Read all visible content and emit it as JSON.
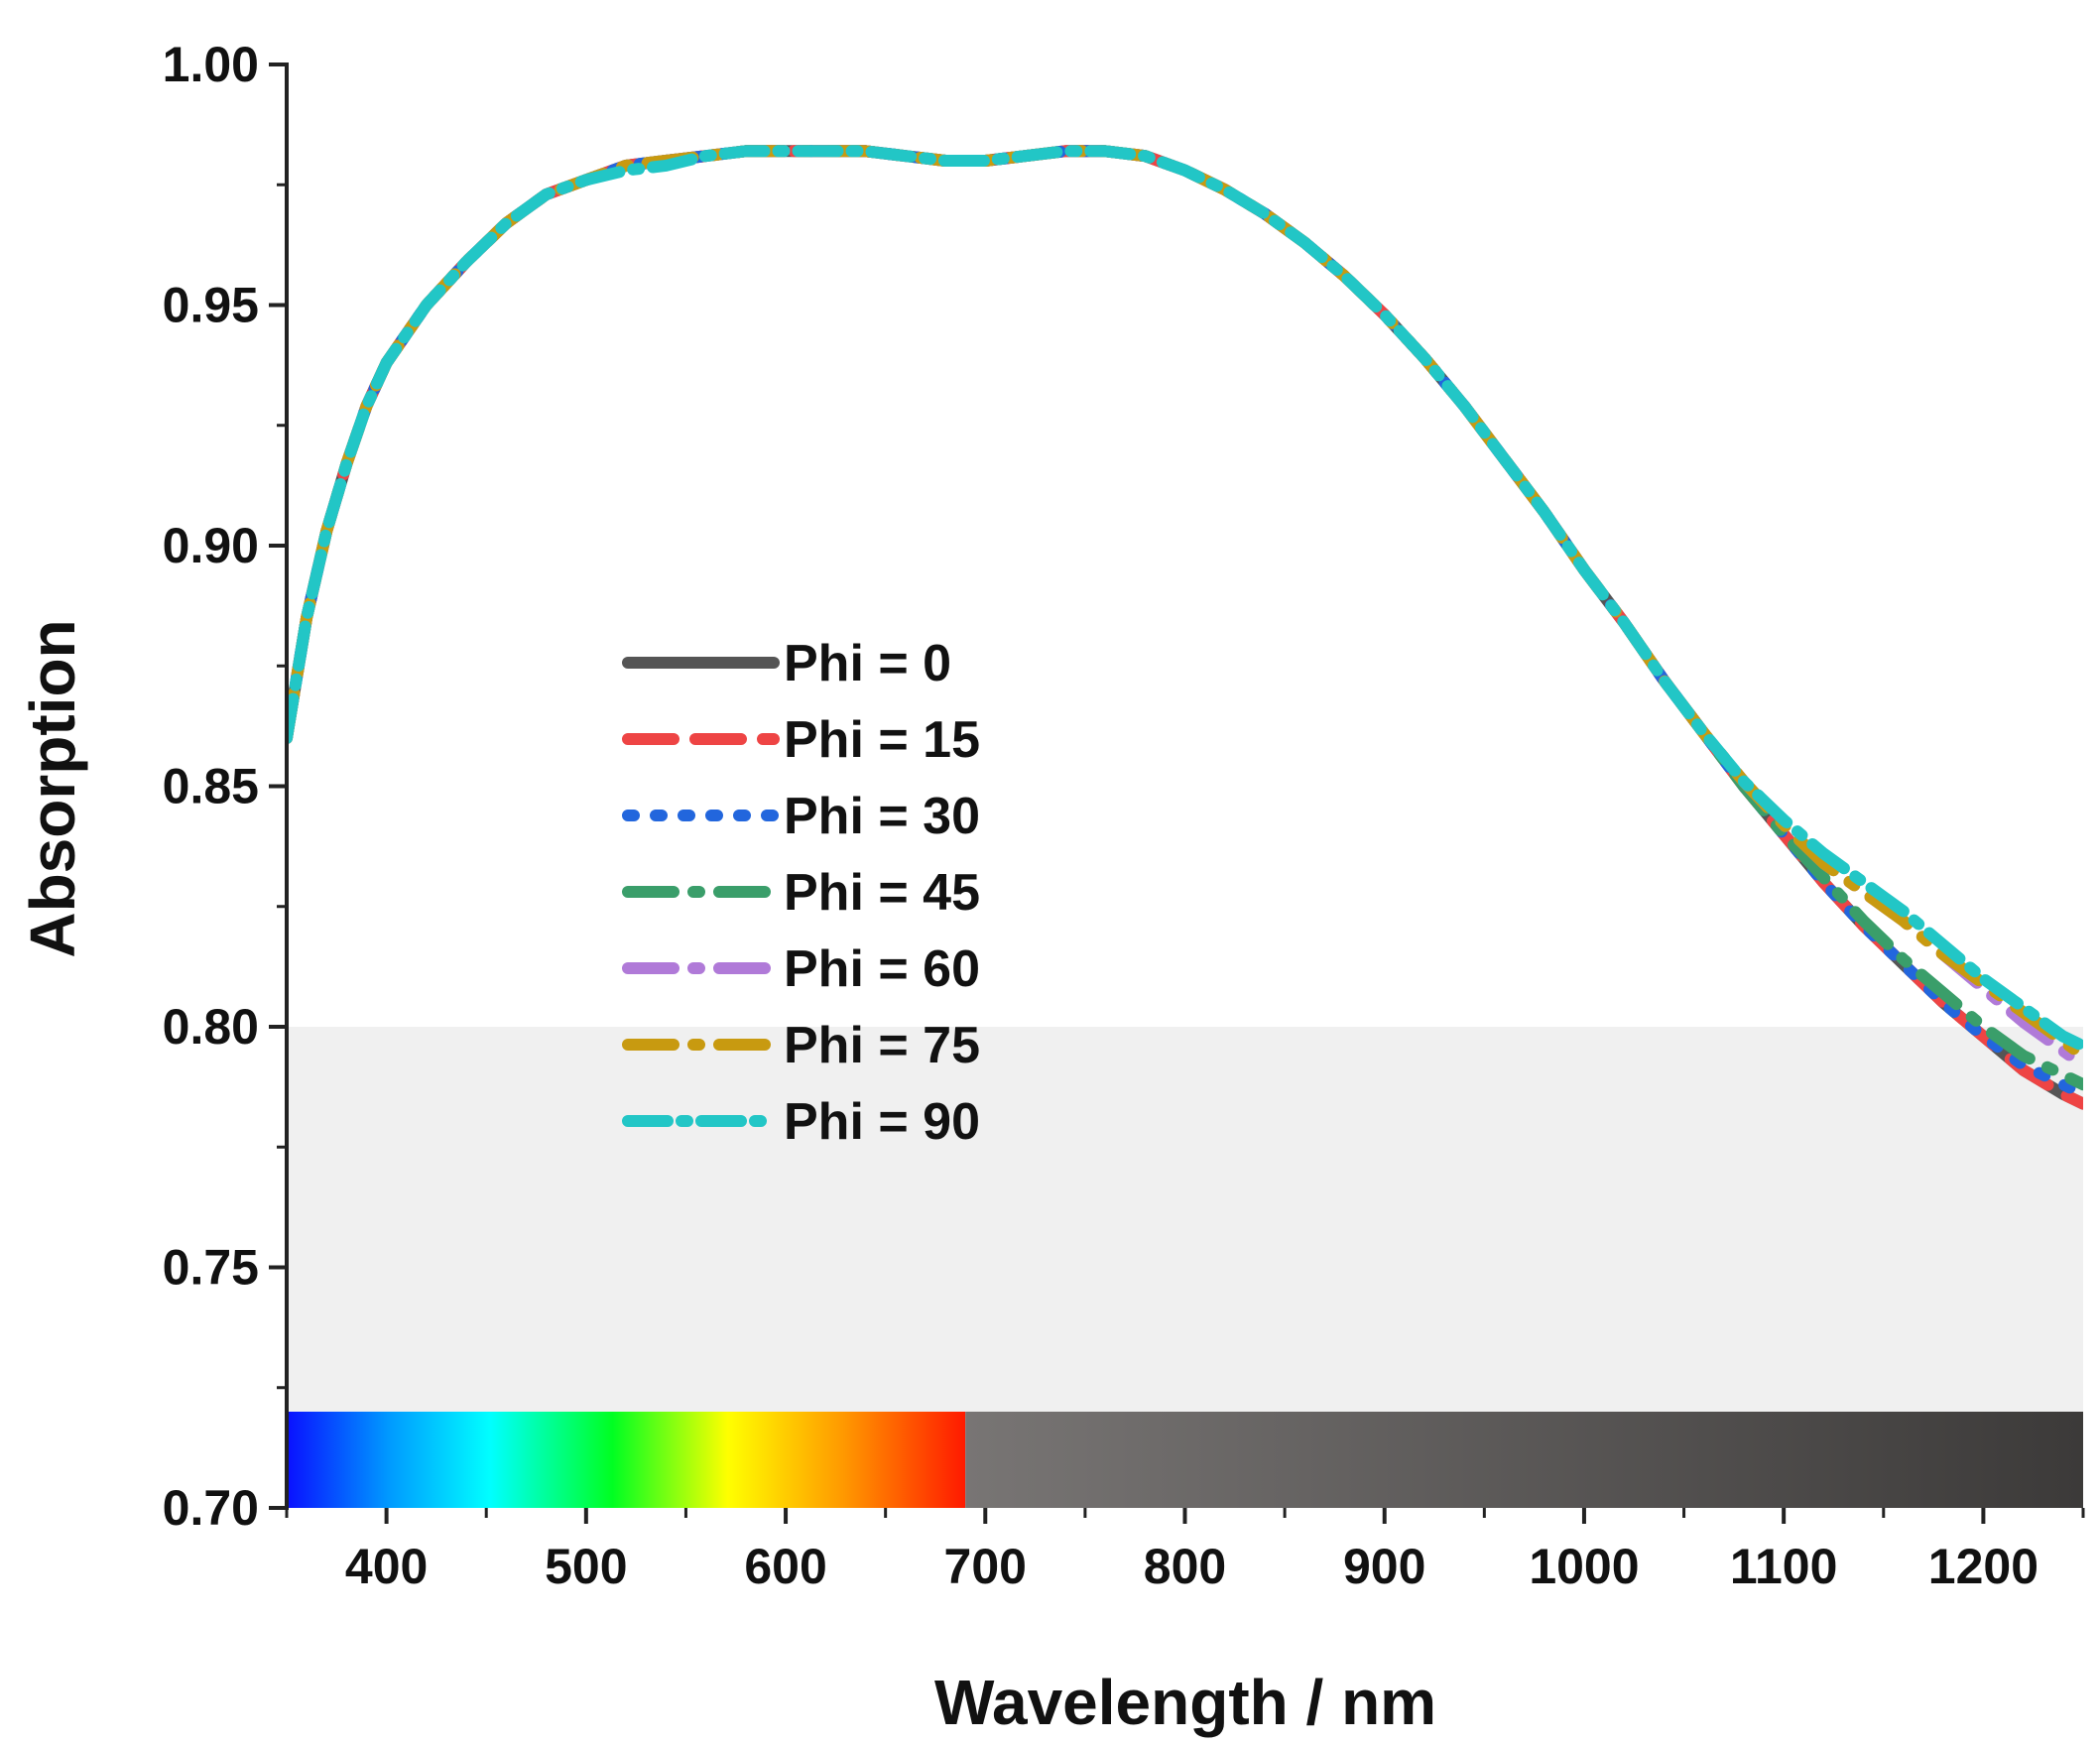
{
  "chart_data": {
    "type": "line",
    "xlabel": "Wavelength / nm",
    "ylabel": "Absorption",
    "xlim": [
      350,
      1250
    ],
    "ylim": [
      0.7,
      1.0
    ],
    "x_ticks": [
      400,
      500,
      600,
      700,
      800,
      900,
      1000,
      1100,
      1200
    ],
    "y_ticks": [
      0.7,
      0.75,
      0.8,
      0.85,
      0.9,
      0.95,
      1.0
    ],
    "y_tick_labels": [
      "0.70",
      "0.75",
      "0.80",
      "0.85",
      "0.90",
      "0.95",
      "1.00"
    ],
    "x": [
      350,
      360,
      370,
      380,
      390,
      400,
      420,
      440,
      460,
      480,
      500,
      520,
      540,
      560,
      580,
      600,
      620,
      640,
      660,
      680,
      700,
      720,
      740,
      760,
      780,
      800,
      820,
      840,
      860,
      880,
      900,
      920,
      940,
      960,
      980,
      1000,
      1020,
      1040,
      1060,
      1080,
      1100,
      1120,
      1140,
      1160,
      1180,
      1200,
      1220,
      1240,
      1250
    ],
    "series": [
      {
        "name": "Phi = 0",
        "color": "#555555",
        "style": "solid",
        "values": [
          0.86,
          0.885,
          0.903,
          0.917,
          0.929,
          0.938,
          0.95,
          0.959,
          0.967,
          0.973,
          0.976,
          0.979,
          0.98,
          0.981,
          0.982,
          0.982,
          0.982,
          0.982,
          0.981,
          0.98,
          0.98,
          0.981,
          0.982,
          0.982,
          0.981,
          0.978,
          0.974,
          0.969,
          0.963,
          0.956,
          0.948,
          0.939,
          0.929,
          0.918,
          0.907,
          0.895,
          0.884,
          0.872,
          0.861,
          0.85,
          0.84,
          0.83,
          0.821,
          0.813,
          0.805,
          0.798,
          0.791,
          0.786,
          0.784
        ]
      },
      {
        "name": "Phi = 15",
        "color": "#ee4444",
        "style": "dash",
        "values": [
          0.86,
          0.885,
          0.903,
          0.917,
          0.929,
          0.938,
          0.95,
          0.959,
          0.967,
          0.973,
          0.976,
          0.979,
          0.98,
          0.981,
          0.982,
          0.982,
          0.982,
          0.982,
          0.981,
          0.98,
          0.98,
          0.981,
          0.982,
          0.982,
          0.981,
          0.978,
          0.974,
          0.969,
          0.963,
          0.956,
          0.948,
          0.939,
          0.929,
          0.918,
          0.907,
          0.895,
          0.884,
          0.872,
          0.861,
          0.85,
          0.84,
          0.83,
          0.821,
          0.813,
          0.805,
          0.798,
          0.791,
          0.786,
          0.784
        ]
      },
      {
        "name": "Phi = 30",
        "color": "#2266dd",
        "style": "dot",
        "values": [
          0.86,
          0.885,
          0.903,
          0.917,
          0.929,
          0.938,
          0.95,
          0.959,
          0.967,
          0.973,
          0.976,
          0.979,
          0.98,
          0.981,
          0.982,
          0.982,
          0.982,
          0.982,
          0.981,
          0.98,
          0.98,
          0.981,
          0.982,
          0.982,
          0.981,
          0.978,
          0.974,
          0.969,
          0.963,
          0.956,
          0.948,
          0.939,
          0.929,
          0.918,
          0.907,
          0.895,
          0.884,
          0.872,
          0.861,
          0.85,
          0.84,
          0.83,
          0.821,
          0.813,
          0.805,
          0.798,
          0.792,
          0.788,
          0.786
        ]
      },
      {
        "name": "Phi = 45",
        "color": "#3a9e6a",
        "style": "dashdot",
        "values": [
          0.86,
          0.885,
          0.903,
          0.917,
          0.929,
          0.938,
          0.95,
          0.959,
          0.967,
          0.973,
          0.976,
          0.979,
          0.98,
          0.981,
          0.982,
          0.982,
          0.982,
          0.982,
          0.981,
          0.98,
          0.98,
          0.981,
          0.982,
          0.982,
          0.981,
          0.978,
          0.974,
          0.969,
          0.963,
          0.956,
          0.948,
          0.939,
          0.929,
          0.918,
          0.907,
          0.895,
          0.884,
          0.872,
          0.861,
          0.85,
          0.84,
          0.831,
          0.822,
          0.814,
          0.807,
          0.8,
          0.794,
          0.79,
          0.788
        ]
      },
      {
        "name": "Phi = 60",
        "color": "#b07ad8",
        "style": "dashdot",
        "values": [
          0.86,
          0.885,
          0.903,
          0.917,
          0.929,
          0.938,
          0.95,
          0.959,
          0.967,
          0.973,
          0.976,
          0.979,
          0.98,
          0.981,
          0.982,
          0.982,
          0.982,
          0.982,
          0.981,
          0.98,
          0.98,
          0.981,
          0.982,
          0.982,
          0.981,
          0.978,
          0.974,
          0.969,
          0.963,
          0.956,
          0.948,
          0.939,
          0.929,
          0.918,
          0.907,
          0.895,
          0.884,
          0.872,
          0.861,
          0.851,
          0.842,
          0.834,
          0.828,
          0.822,
          0.815,
          0.808,
          0.801,
          0.795,
          0.792
        ]
      },
      {
        "name": "Phi = 75",
        "color": "#c89a10",
        "style": "dashdot",
        "values": [
          0.86,
          0.885,
          0.903,
          0.917,
          0.929,
          0.938,
          0.95,
          0.959,
          0.967,
          0.973,
          0.976,
          0.979,
          0.98,
          0.981,
          0.982,
          0.982,
          0.982,
          0.982,
          0.981,
          0.98,
          0.98,
          0.981,
          0.982,
          0.982,
          0.981,
          0.978,
          0.974,
          0.969,
          0.963,
          0.956,
          0.948,
          0.939,
          0.929,
          0.918,
          0.907,
          0.895,
          0.884,
          0.872,
          0.861,
          0.851,
          0.842,
          0.834,
          0.828,
          0.822,
          0.815,
          0.809,
          0.803,
          0.797,
          0.794
        ]
      },
      {
        "name": "Phi = 90",
        "color": "#22c6c6",
        "style": "dashdotdash",
        "values": [
          0.86,
          0.885,
          0.903,
          0.917,
          0.929,
          0.938,
          0.95,
          0.959,
          0.967,
          0.973,
          0.976,
          0.978,
          0.979,
          0.981,
          0.982,
          0.982,
          0.982,
          0.982,
          0.981,
          0.98,
          0.98,
          0.981,
          0.982,
          0.982,
          0.981,
          0.978,
          0.974,
          0.969,
          0.963,
          0.956,
          0.948,
          0.939,
          0.929,
          0.918,
          0.907,
          0.895,
          0.884,
          0.872,
          0.861,
          0.851,
          0.843,
          0.836,
          0.83,
          0.824,
          0.817,
          0.81,
          0.804,
          0.798,
          0.796
        ]
      }
    ],
    "color_strip": {
      "visible_range_nm": [
        350,
        690
      ],
      "ir_range_nm": [
        690,
        1250
      ],
      "y_range": [
        0.7,
        0.72
      ]
    },
    "shaded_band_y_range": [
      0.72,
      0.8
    ],
    "legend_placement": "center-left"
  }
}
